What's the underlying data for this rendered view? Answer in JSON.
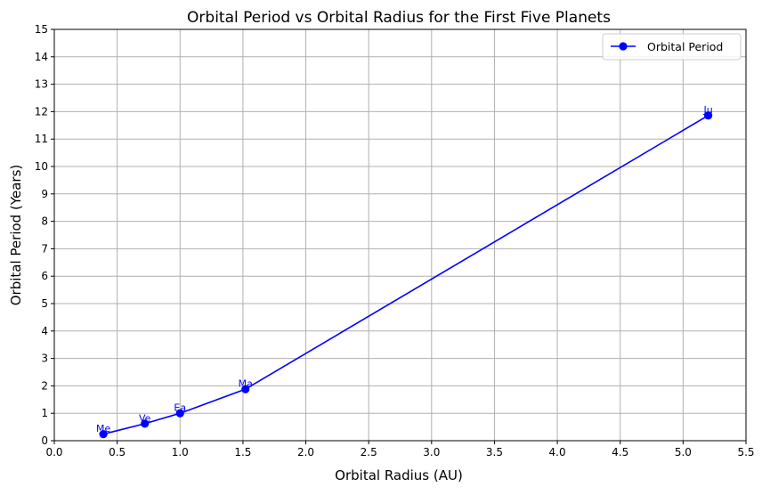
{
  "chart_data": {
    "type": "line",
    "title": "Orbital Period vs Orbital Radius for the First Five Planets",
    "xlabel": "Orbital Radius (AU)",
    "ylabel": "Orbital Period (Years)",
    "xlim": [
      0,
      5.5
    ],
    "ylim": [
      0,
      15
    ],
    "xticks": [
      0.0,
      0.5,
      1.0,
      1.5,
      2.0,
      2.5,
      3.0,
      3.5,
      4.0,
      4.5,
      5.0,
      5.5
    ],
    "xtick_labels": [
      "0.0",
      "0.5",
      "1.0",
      "1.5",
      "2.0",
      "2.5",
      "3.0",
      "3.5",
      "4.0",
      "4.5",
      "5.0",
      "5.5"
    ],
    "yticks": [
      0,
      1,
      2,
      3,
      4,
      5,
      6,
      7,
      8,
      9,
      10,
      11,
      12,
      13,
      14,
      15
    ],
    "ytick_labels": [
      "0",
      "1",
      "2",
      "3",
      "4",
      "5",
      "6",
      "7",
      "8",
      "9",
      "10",
      "11",
      "12",
      "13",
      "14",
      "15"
    ],
    "grid": true,
    "legend_position": "top-right",
    "series": [
      {
        "name": "Orbital Period",
        "color": "#0000ff",
        "marker": "circle",
        "x": [
          0.39,
          0.72,
          1.0,
          1.52,
          5.2
        ],
        "y": [
          0.24,
          0.62,
          1.0,
          1.88,
          11.86
        ],
        "point_labels": [
          "Me",
          "Ve",
          "Ea",
          "Ma",
          "Ju"
        ]
      }
    ]
  }
}
